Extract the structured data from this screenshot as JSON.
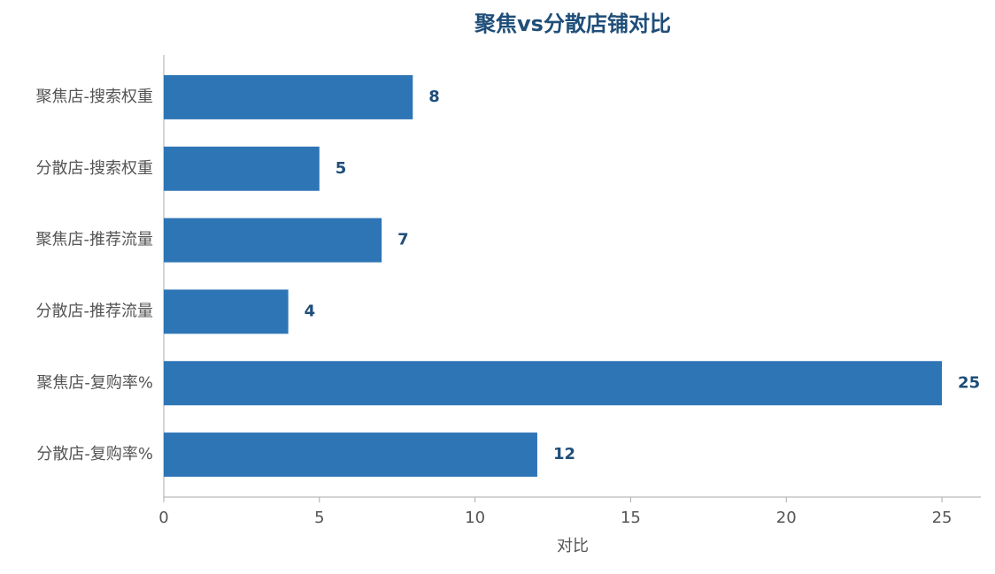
{
  "chart_data": {
    "type": "barh",
    "title": "聚焦vs分散店铺对比",
    "xlabel": "对比",
    "categories": [
      "聚焦店-搜索权重",
      "分散店-搜索权重",
      "聚焦店-推荐流量",
      "分散店-推荐流量",
      "聚焦店-复购率%",
      "分散店-复购率%"
    ],
    "values": [
      8,
      5,
      7,
      4,
      25,
      12
    ],
    "color": "#2e75b6",
    "label_color": "#1f4e79",
    "xlim": [
      0,
      26.25
    ],
    "xticks": [
      0,
      5,
      10,
      15,
      20,
      25
    ],
    "grid": false
  }
}
